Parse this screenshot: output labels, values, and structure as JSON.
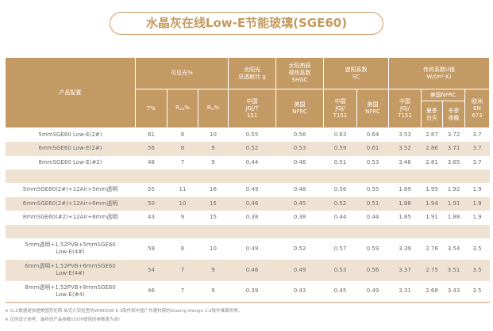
{
  "title": "水晶灰在线Low-E节能玻璃(SGE60)",
  "header": {
    "product": "产品配置",
    "visible": "可见光%",
    "t": "T%",
    "rout_r": "R",
    "rout_sub": "out",
    "rout_pct": "%",
    "rin_r": "R",
    "rin_sub": "in",
    "rin_pct": "%",
    "solar": "太阳光\n总透射比 g",
    "shgc": "太阳热获\n得热系数\nSHGC",
    "sc": "遮阳系数\nSC",
    "u": "传热系数U值\nW/(m²·K)",
    "cn_jgjt151": "中国\nJGJ/T\n151",
    "us_nfrc": "美国\nNFRC",
    "cn_jgj_t151": "中国\nJGJ/\nT151",
    "us_nfrc2": "美国\nNFRC",
    "cn_u": "中国\nJGJ/\nT151",
    "us_nfrc_u": "美国NFRC",
    "summer": "夏季\n白天",
    "winter": "冬季\n夜晚",
    "eu": "欧洲\nEN\n673"
  },
  "rows": [
    [
      "5mmSGE60 Low-E(2#)",
      "61",
      "8",
      "10",
      "0.55",
      "0.56",
      "0.63",
      "0.64",
      "3.53",
      "2.87",
      "3.72",
      "3.7"
    ],
    [
      "6mmSGE60 Low-E(2#)",
      "56",
      "8",
      "9",
      "0.52",
      "0.53",
      "0.59",
      "0.61",
      "3.52",
      "2.86",
      "3.71",
      "3.7"
    ],
    [
      "8mmSGE60 Low-E(#2)",
      "48",
      "7",
      "9",
      "0.44",
      "0.46",
      "0.51",
      "0.53",
      "3.46",
      "2.81",
      "3.65",
      "3.7"
    ],
    [
      "5mmSGE60(2#)+12Air+5mm透明",
      "55",
      "11",
      "16",
      "0.49",
      "0.48",
      "0.56",
      "0.55",
      "1.89",
      "1.95",
      "1.92",
      "1.9"
    ],
    [
      "6mmSGE60(2#)+12Air+6mm透明",
      "50",
      "10",
      "15",
      "0.46",
      "0.45",
      "0.52",
      "0.51",
      "1.88",
      "1.94",
      "1.91",
      "1.9"
    ],
    [
      "8mmSGE60(#2)+12Air+8mm透明",
      "43",
      "9",
      "15",
      "0.38",
      "0.38",
      "0.44",
      "0.44",
      "1.85",
      "1.91",
      "1.88",
      "1.9"
    ],
    [
      "5mm透明+1.52PVB+5mmSGE60\nLow-E(4#)",
      "59",
      "8",
      "10",
      "0.49",
      "0.52",
      "0.57",
      "0.59",
      "3.39",
      "2.76",
      "3.54",
      "3.5"
    ],
    [
      "6mm透明+1.52PVB+6mmSGE60\nLow-E(4#)",
      "54",
      "7",
      "9",
      "0.46",
      "0.49",
      "0.53",
      "0.56",
      "3.37",
      "2.75",
      "3.51",
      "3.5"
    ],
    [
      "8mm透明+1.52PVB+8mmSGE60\nLow-E(#4)",
      "46",
      "7",
      "9",
      "0.39",
      "0.43",
      "0.45",
      "0.49",
      "3.31",
      "2.68",
      "3.43",
      "3.5"
    ]
  ],
  "notes": [
    "※ 以上数据是依据美国劳伦斯·伯克力实验室的WINDOW 6.3软件和中国广东建科院的Glazing Design 1.0软件推算所得。",
    "※ 仅供设计参考，最终的产品参数以SYP提供的参数表为准!"
  ],
  "colors": {
    "header": "#c49a64",
    "stripe": "#efe2d3",
    "title": "#c49a5e"
  }
}
